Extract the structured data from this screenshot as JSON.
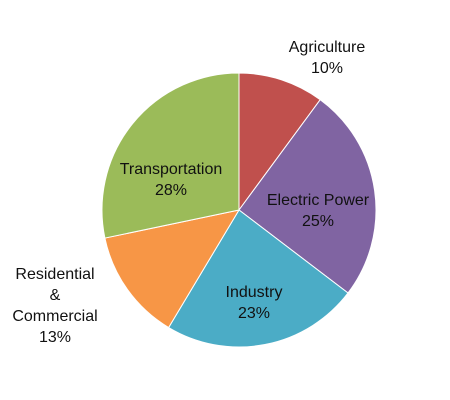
{
  "chart_data": {
    "type": "pie",
    "title": "",
    "slices": [
      {
        "label_lines": [
          "Agriculture"
        ],
        "value": 10,
        "value_text": "10%",
        "color": "#C0504D"
      },
      {
        "label_lines": [
          "Electric Power"
        ],
        "value": 25,
        "value_text": "25%",
        "color": "#8064A2"
      },
      {
        "label_lines": [
          "Industry"
        ],
        "value": 23,
        "value_text": "23%",
        "color": "#4BACC6"
      },
      {
        "label_lines": [
          "Residential",
          "&",
          "Commercial"
        ],
        "value": 13,
        "value_text": "13%",
        "color": "#F79646"
      },
      {
        "label_lines": [
          "Transportation"
        ],
        "value": 28,
        "value_text": "28%",
        "color": "#9BBB59"
      }
    ],
    "start_angle_deg": 0,
    "direction": "clockwise"
  }
}
